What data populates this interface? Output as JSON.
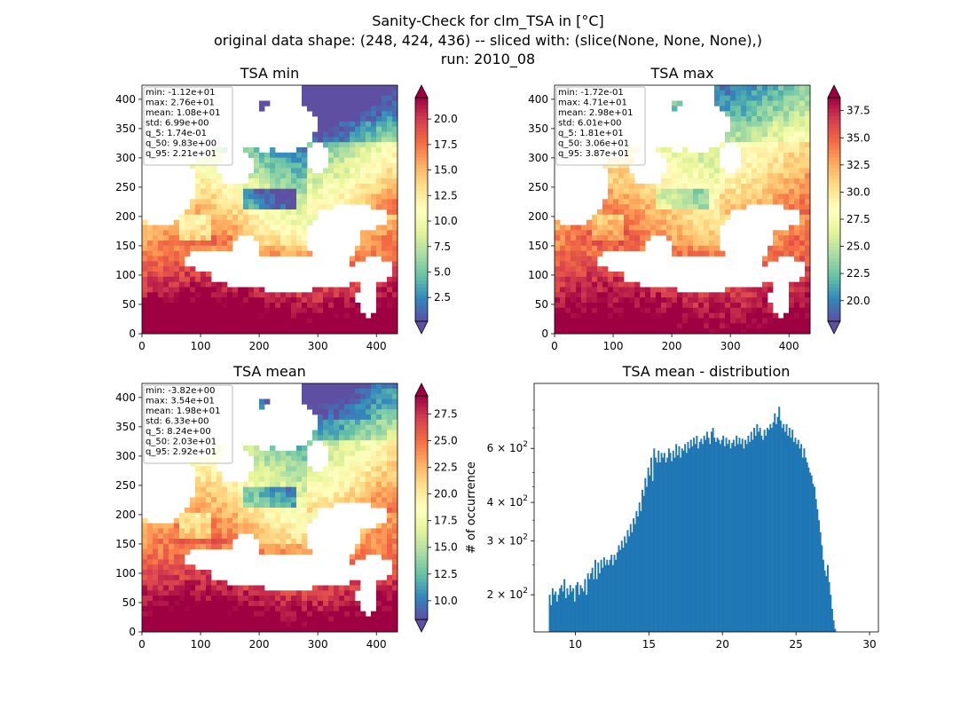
{
  "figure": {
    "title_lines": [
      "Sanity-Check for clm_TSA in [°C]",
      "original data shape: (248, 424, 436) -- sliced with: (slice(None, None, None),)",
      "run: 2010_08"
    ]
  },
  "chart_data": [
    {
      "type": "heatmap",
      "title": "TSA min",
      "x_ticks": [
        0,
        100,
        200,
        300,
        400
      ],
      "y_ticks": [
        0,
        50,
        100,
        150,
        200,
        250,
        300,
        350,
        400
      ],
      "xlim": [
        0,
        436
      ],
      "ylim": [
        0,
        424
      ],
      "colormap": "Spectral_r",
      "colorbar": {
        "ticks": [
          "2.5",
          "5.0",
          "7.5",
          "10.0",
          "12.5",
          "15.0",
          "17.5",
          "20.0"
        ],
        "vmin": 0.17,
        "vmax": 22.1,
        "extend": "both"
      },
      "stats": [
        "min: -1.12e+01",
        "max: 2.76e+01",
        "mean: 1.08e+01",
        "std: 6.99e+00",
        "q_5: 1.74e-01",
        "q_50: 9.83e+00",
        "q_95: 2.21e+01"
      ]
    },
    {
      "type": "heatmap",
      "title": "TSA max",
      "x_ticks": [
        0,
        100,
        200,
        300,
        400
      ],
      "y_ticks": [
        0,
        50,
        100,
        150,
        200,
        250,
        300,
        350,
        400
      ],
      "xlim": [
        0,
        436
      ],
      "ylim": [
        0,
        424
      ],
      "colormap": "Spectral_r",
      "colorbar": {
        "ticks": [
          "20.0",
          "22.5",
          "25.0",
          "27.5",
          "30.0",
          "32.5",
          "35.0",
          "37.5"
        ],
        "vmin": 18.1,
        "vmax": 38.7,
        "extend": "both"
      },
      "stats": [
        "min: -1.72e-01",
        "max: 4.71e+01",
        "mean: 2.98e+01",
        "std: 6.01e+00",
        "q_5: 1.81e+01",
        "q_50: 3.06e+01",
        "q_95: 3.87e+01"
      ]
    },
    {
      "type": "heatmap",
      "title": "TSA mean",
      "x_ticks": [
        0,
        100,
        200,
        300,
        400
      ],
      "y_ticks": [
        0,
        50,
        100,
        150,
        200,
        250,
        300,
        350,
        400
      ],
      "xlim": [
        0,
        436
      ],
      "ylim": [
        0,
        424
      ],
      "colormap": "Spectral_r",
      "colorbar": {
        "ticks": [
          "10.0",
          "12.5",
          "15.0",
          "17.5",
          "20.0",
          "22.5",
          "25.0",
          "27.5"
        ],
        "vmin": 8.24,
        "vmax": 29.2,
        "extend": "both"
      },
      "stats": [
        "min: -3.82e+00",
        "max: 3.54e+01",
        "mean: 1.98e+01",
        "std: 6.33e+00",
        "q_5: 8.24e+00",
        "q_50: 2.03e+01",
        "q_95: 2.92e+01"
      ]
    },
    {
      "type": "bar",
      "title": "TSA mean - distribution",
      "ylabel": "# of occurrence",
      "x_ticks": [
        10,
        15,
        20,
        25,
        30
      ],
      "xlim": [
        7.2,
        30.6
      ],
      "ylim_log10": [
        2.18,
        2.99
      ],
      "y_ticks": [
        {
          "base": "2 × 10",
          "exp": "2",
          "value": 200
        },
        {
          "base": "3 × 10",
          "exp": "2",
          "value": 300
        },
        {
          "base": "4 × 10",
          "exp": "2",
          "value": 400
        },
        {
          "base": "6 × 10",
          "exp": "2",
          "value": 600
        }
      ],
      "bin_width": 0.1,
      "x_start": 8.2,
      "values": [
        200,
        185,
        210,
        200,
        205,
        190,
        200,
        210,
        215,
        205,
        225,
        195,
        210,
        200,
        215,
        205,
        210,
        190,
        215,
        220,
        200,
        215,
        210,
        205,
        225,
        200,
        235,
        225,
        235,
        245,
        225,
        260,
        225,
        255,
        235,
        260,
        245,
        265,
        250,
        260,
        250,
        260,
        270,
        250,
        270,
        260,
        275,
        290,
        280,
        300,
        285,
        310,
        295,
        325,
        310,
        340,
        320,
        355,
        340,
        375,
        360,
        400,
        375,
        440,
        420,
        480,
        450,
        520,
        490,
        560,
        470,
        600,
        560,
        540,
        590,
        540,
        580,
        560,
        580,
        540,
        560,
        600,
        580,
        545,
        590,
        560,
        620,
        570,
        610,
        560,
        600,
        590,
        620,
        580,
        630,
        600,
        640,
        610,
        650,
        620,
        660,
        600,
        630,
        645,
        620,
        660,
        640,
        680,
        650,
        620,
        680,
        700,
        650,
        630,
        650,
        640,
        620,
        640,
        660,
        610,
        650,
        620,
        640,
        600,
        625,
        640,
        610,
        660,
        620,
        650,
        620,
        645,
        600,
        640,
        620,
        660,
        630,
        680,
        640,
        700,
        660,
        720,
        680,
        700,
        660,
        640,
        690,
        660,
        700,
        690,
        720,
        700,
        730,
        780,
        720,
        760,
        820,
        740,
        700,
        720,
        680,
        720,
        660,
        700,
        650,
        690,
        630,
        650,
        620,
        640,
        600,
        620,
        560,
        600,
        560,
        540,
        520,
        500,
        490,
        460,
        450,
        410,
        380,
        350,
        320,
        290,
        260,
        240,
        230,
        250,
        220,
        200,
        180,
        165,
        155
      ]
    }
  ]
}
